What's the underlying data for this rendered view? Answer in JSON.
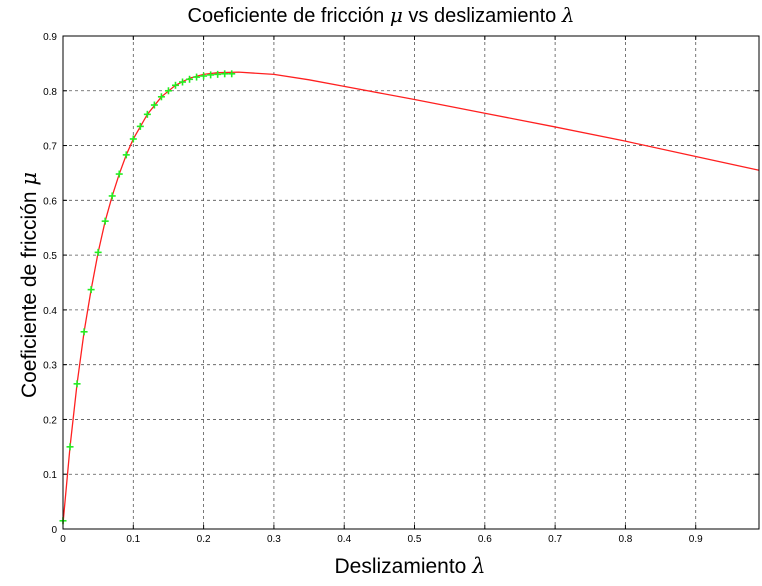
{
  "chart_data": {
    "type": "line",
    "title_text": "Coeficiente de fricción",
    "title_mu": "μ",
    "title_vs": "vs deslizamiento",
    "title_lambda": "λ",
    "xlabel_text": "Deslizamiento",
    "xlabel_symbol": "λ",
    "ylabel_text": "Coeficiente de fricción",
    "ylabel_symbol": "μ",
    "xlim": [
      0,
      0.99
    ],
    "ylim": [
      0,
      0.9
    ],
    "grid": true,
    "xticks": [
      "0",
      "0.1",
      "0.2",
      "0.3",
      "0.4",
      "0.5",
      "0.6",
      "0.7",
      "0.8",
      "0.9"
    ],
    "xtick_values": [
      0,
      0.1,
      0.2,
      0.3,
      0.4,
      0.5,
      0.6,
      0.7,
      0.8,
      0.9
    ],
    "yticks": [
      "0",
      "0.1",
      "0.2",
      "0.3",
      "0.4",
      "0.5",
      "0.6",
      "0.7",
      "0.8",
      "0.9"
    ],
    "ytick_values": [
      0,
      0.1,
      0.2,
      0.3,
      0.4,
      0.5,
      0.6,
      0.7,
      0.8,
      0.9
    ],
    "colors": {
      "curve": "#ff2020",
      "markers": "#22ee22",
      "grid": "#555555"
    },
    "series": [
      {
        "style": "line",
        "x": [
          0,
          0.005,
          0.01,
          0.02,
          0.03,
          0.04,
          0.05,
          0.06,
          0.07,
          0.08,
          0.09,
          0.1,
          0.12,
          0.14,
          0.16,
          0.18,
          0.2,
          0.22,
          0.25,
          0.3,
          0.35,
          0.4,
          0.5,
          0.6,
          0.7,
          0.8,
          0.9,
          0.99
        ],
        "y": [
          0.01,
          0.08,
          0.15,
          0.265,
          0.36,
          0.437,
          0.505,
          0.562,
          0.608,
          0.648,
          0.683,
          0.712,
          0.757,
          0.789,
          0.81,
          0.823,
          0.83,
          0.833,
          0.834,
          0.83,
          0.82,
          0.808,
          0.784,
          0.759,
          0.734,
          0.708,
          0.68,
          0.655
        ]
      },
      {
        "style": "markers",
        "marker": "+",
        "x": [
          0,
          0.01,
          0.02,
          0.03,
          0.04,
          0.05,
          0.06,
          0.07,
          0.08,
          0.09,
          0.1,
          0.11,
          0.12,
          0.13,
          0.14,
          0.15,
          0.16,
          0.17,
          0.18,
          0.19,
          0.2,
          0.21,
          0.22,
          0.23,
          0.24
        ],
        "y": [
          0.015,
          0.15,
          0.265,
          0.36,
          0.437,
          0.505,
          0.562,
          0.608,
          0.648,
          0.683,
          0.712,
          0.735,
          0.757,
          0.774,
          0.789,
          0.8,
          0.81,
          0.816,
          0.821,
          0.825,
          0.827,
          0.829,
          0.83,
          0.831,
          0.831
        ]
      }
    ]
  }
}
